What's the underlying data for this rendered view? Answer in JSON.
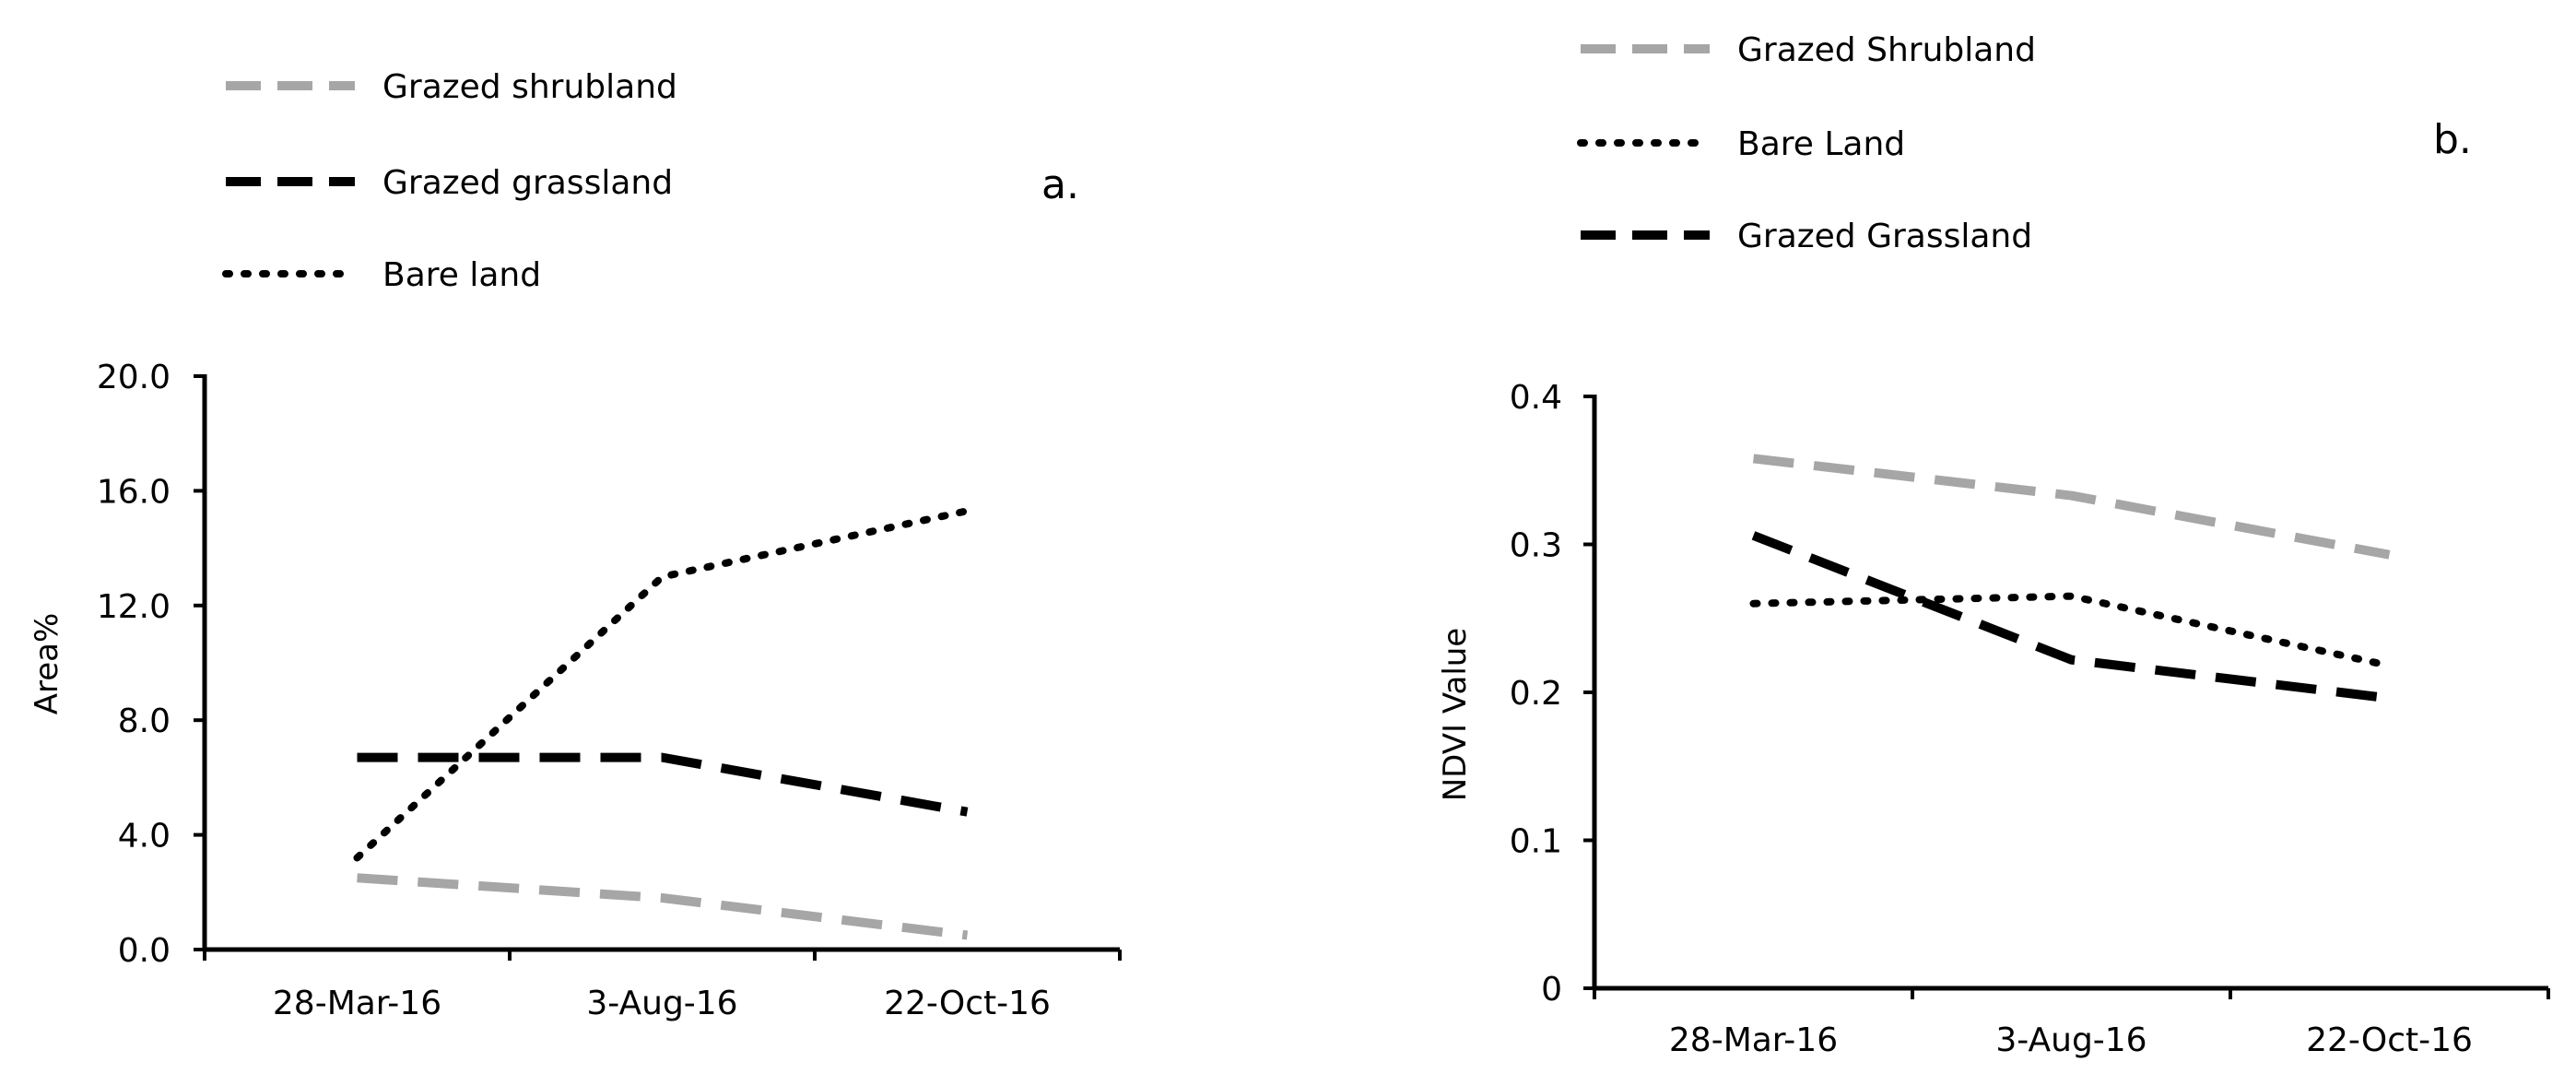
{
  "chart_data": [
    {
      "type": "line",
      "panel_label": "a.",
      "ylabel": "Area%",
      "xlabel": "",
      "categories": [
        "28-Mar-16",
        "3-Aug-16",
        "22-Oct-16"
      ],
      "ylim": [
        0,
        20
      ],
      "yticks": [
        "0.0",
        "4.0",
        "8.0",
        "12.0",
        "16.0",
        "20.0"
      ],
      "ytick_values": [
        0,
        4,
        8,
        12,
        16,
        20
      ],
      "legend_placement": "top-left",
      "series": [
        {
          "name": "Grazed shrubland",
          "values": [
            2.5,
            1.8,
            0.5
          ],
          "color": "#a6a6a6",
          "style": "dashed"
        },
        {
          "name": "Grazed grassland",
          "values": [
            6.7,
            6.7,
            4.8
          ],
          "color": "#000000",
          "style": "dashed"
        },
        {
          "name": "Bare land",
          "values": [
            3.2,
            13.0,
            15.3
          ],
          "color": "#000000",
          "style": "dotted"
        }
      ]
    },
    {
      "type": "line",
      "panel_label": "b.",
      "ylabel": "NDVI Value",
      "xlabel": "",
      "categories": [
        "28-Mar-16",
        "3-Aug-16",
        "22-Oct-16"
      ],
      "ylim": [
        0,
        0.4
      ],
      "yticks": [
        "0",
        "0.1",
        "0.2",
        "0.3",
        "0.4"
      ],
      "ytick_values": [
        0,
        0.1,
        0.2,
        0.3,
        0.4
      ],
      "legend_placement": "top-left",
      "series": [
        {
          "name": "Grazed Shrubland",
          "values": [
            0.358,
            0.333,
            0.293
          ],
          "color": "#a6a6a6",
          "style": "dashed"
        },
        {
          "name": "Bare Land",
          "values": [
            0.26,
            0.265,
            0.218
          ],
          "color": "#000000",
          "style": "dotted"
        },
        {
          "name": "Grazed Grassland",
          "values": [
            0.306,
            0.222,
            0.196
          ],
          "color": "#000000",
          "style": "dashed"
        }
      ]
    }
  ]
}
